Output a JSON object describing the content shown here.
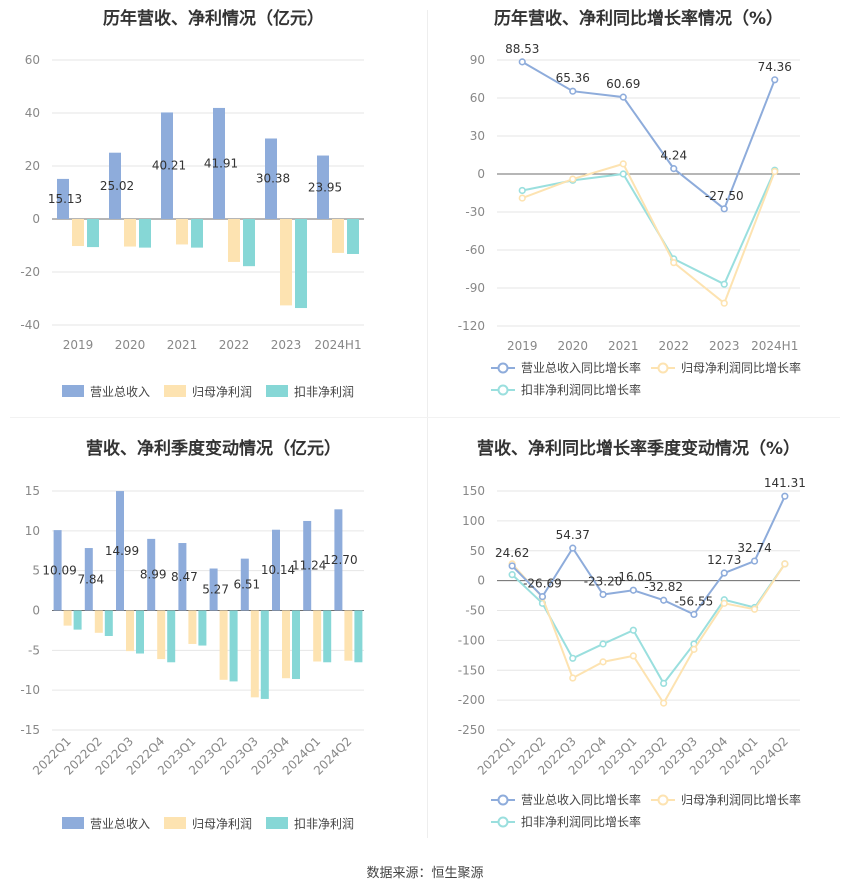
{
  "source": "数据来源：恒生聚源",
  "colors": {
    "revenue": "#8eacdb",
    "parent": "#fde3b1",
    "deducted": "#86d7d6",
    "grid": "#e6e6e6",
    "axis": "#888888",
    "label": "#333333"
  },
  "chart_data": [
    {
      "type": "bar",
      "title": "历年营收、净利情况（亿元）",
      "categories": [
        "2019",
        "2020",
        "2021",
        "2022",
        "2023",
        "2024H1"
      ],
      "ylim": [
        -40,
        60
      ],
      "yticks": [
        -40,
        -20,
        0,
        20,
        40,
        60
      ],
      "series": [
        {
          "name": "营业总收入",
          "values": [
            15.13,
            25.02,
            40.21,
            41.91,
            30.38,
            23.95
          ],
          "labels": [
            "15.13",
            "25.02",
            "40.21",
            "41.91",
            "30.38",
            "23.95"
          ]
        },
        {
          "name": "归母净利润",
          "values": [
            -10.2,
            -10.4,
            -9.6,
            -16.2,
            -32.6,
            -12.8
          ]
        },
        {
          "name": "扣非净利润",
          "values": [
            -10.6,
            -10.8,
            -10.8,
            -17.8,
            -33.6,
            -13.2
          ]
        }
      ],
      "legend": "bottom"
    },
    {
      "type": "line",
      "title": "历年营收、净利同比增长率情况（%）",
      "categories": [
        "2019",
        "2020",
        "2021",
        "2022",
        "2023",
        "2024H1"
      ],
      "ylim": [
        -120,
        90
      ],
      "yticks": [
        -120,
        -90,
        -60,
        -30,
        0,
        30,
        60,
        90
      ],
      "series": [
        {
          "name": "营业总收入同比增长率",
          "values": [
            88.53,
            65.36,
            60.69,
            4.24,
            -27.5,
            74.36
          ],
          "labels": [
            "88.53",
            "65.36",
            "60.69",
            "4.24",
            "-27.50",
            "74.36"
          ]
        },
        {
          "name": "归母净利润同比增长率",
          "values": [
            -19,
            -4,
            8,
            -70,
            -102,
            2
          ]
        },
        {
          "name": "扣非净利润同比增长率",
          "values": [
            -13,
            -5,
            0,
            -67,
            -87,
            3
          ]
        }
      ],
      "legend": "bottom"
    },
    {
      "type": "bar",
      "title": "营收、净利季度变动情况（亿元）",
      "categories": [
        "2022Q1",
        "2022Q2",
        "2022Q3",
        "2022Q4",
        "2023Q1",
        "2023Q2",
        "2023Q3",
        "2023Q4",
        "2024Q1",
        "2024Q2"
      ],
      "ylim": [
        -15,
        15
      ],
      "yticks": [
        -15,
        -10,
        -5,
        0,
        5,
        10,
        15
      ],
      "series": [
        {
          "name": "营业总收入",
          "values": [
            10.09,
            7.84,
            14.99,
            8.99,
            8.47,
            5.27,
            6.51,
            10.14,
            11.24,
            12.7
          ],
          "labels": [
            "10.09",
            "7.84",
            "14.99",
            "8.99",
            "8.47",
            "5.27",
            "6.51",
            "10.14",
            "11.24",
            "12.70"
          ]
        },
        {
          "name": "归母净利润",
          "values": [
            -1.9,
            -2.8,
            -5.1,
            -6.1,
            -4.2,
            -8.7,
            -10.9,
            -8.5,
            -6.4,
            -6.3
          ]
        },
        {
          "name": "扣非净利润",
          "values": [
            -2.4,
            -3.2,
            -5.4,
            -6.5,
            -4.4,
            -8.9,
            -11.1,
            -8.6,
            -6.5,
            -6.5
          ]
        }
      ],
      "legend": "bottom"
    },
    {
      "type": "line",
      "title": "营收、净利同比增长率季度变动情况（%）",
      "categories": [
        "2022Q1",
        "2022Q2",
        "2022Q3",
        "2022Q4",
        "2023Q1",
        "2023Q2",
        "2023Q3",
        "2023Q4",
        "2024Q1",
        "2024Q2"
      ],
      "ylim": [
        -250,
        150
      ],
      "yticks": [
        -250,
        -200,
        -150,
        -100,
        -50,
        0,
        50,
        100,
        150
      ],
      "series": [
        {
          "name": "营业总收入同比增长率",
          "values": [
            24.62,
            -26.69,
            54.37,
            -23.2,
            -16.05,
            -32.82,
            -56.55,
            12.73,
            32.74,
            141.31
          ],
          "labels": [
            "24.62",
            "-26.69",
            "54.37",
            "-23.20",
            "-16.05",
            "-32.82",
            "-56.55",
            "12.73",
            "32.74",
            "141.31"
          ]
        },
        {
          "name": "归母净利润同比增长率",
          "values": [
            28,
            -28,
            -163,
            -136,
            -126,
            -205,
            -115,
            -38,
            -48,
            28
          ]
        },
        {
          "name": "扣非净利润同比增长率",
          "values": [
            10,
            -38,
            -130,
            -106,
            -83,
            -172,
            -106,
            -32,
            -45,
            28
          ]
        }
      ],
      "legend": "bottom"
    }
  ]
}
